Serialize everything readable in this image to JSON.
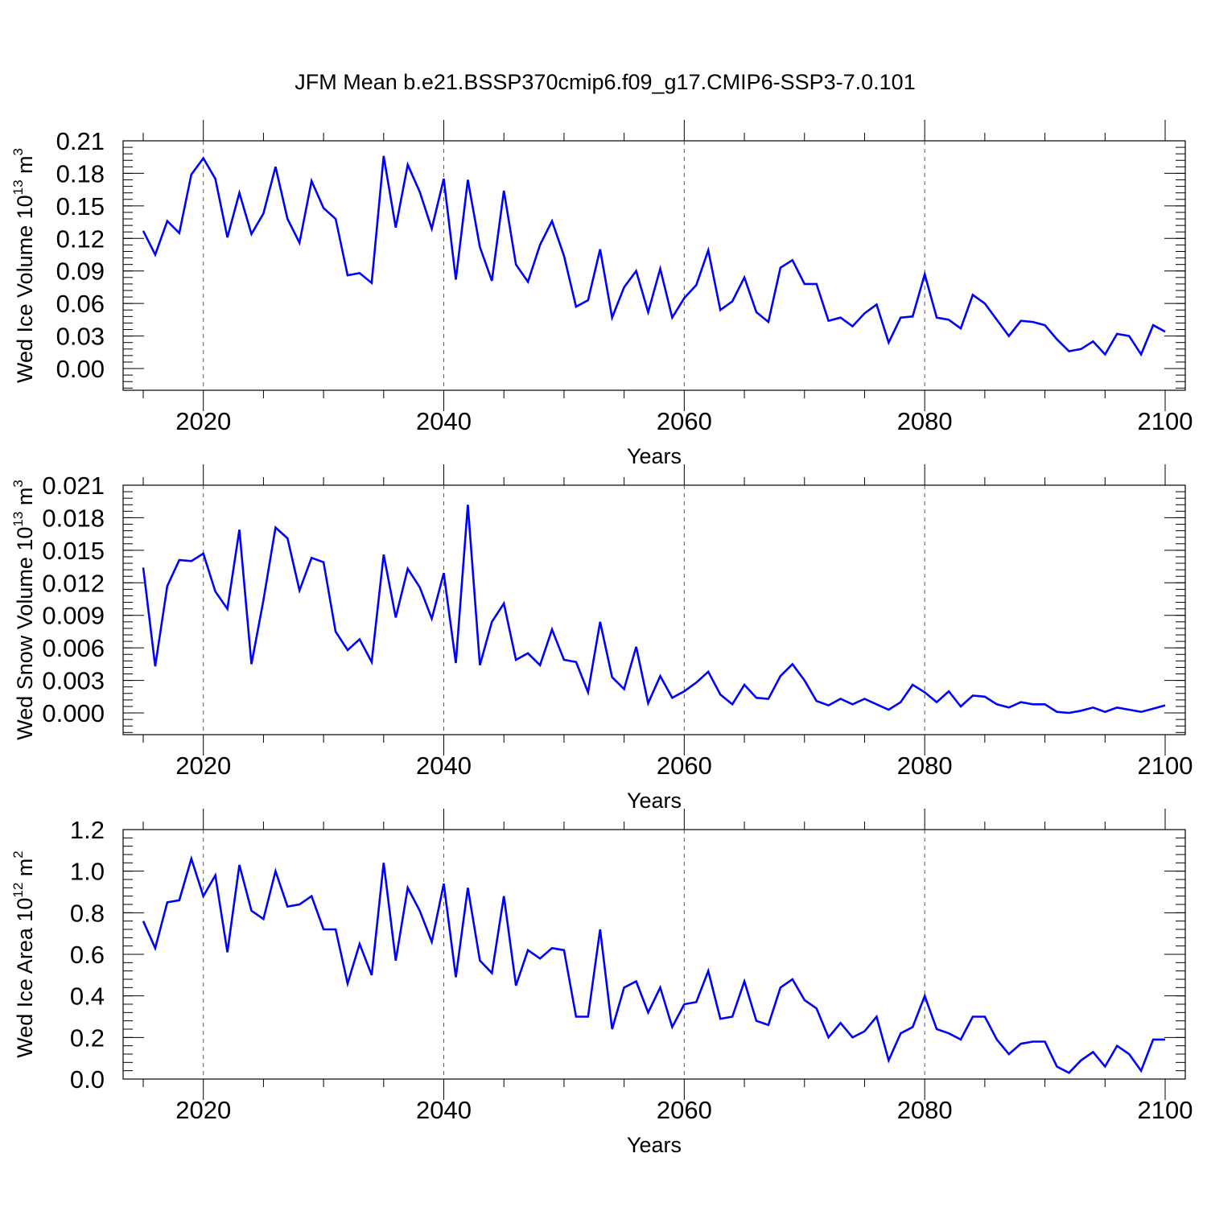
{
  "title": "JFM Mean b.e21.BSSP370cmip6.f09_g17.CMIP6-SSP3-7.0.101",
  "chart_data": [
    {
      "type": "line",
      "ylabel": {
        "main": "Wed Ice Volume 10",
        "exp": "13",
        "unit": " m",
        "unit_exp": "3"
      },
      "xlabel": "Years",
      "xlim": [
        2015,
        2100
      ],
      "ylim": [
        -0.02,
        0.21
      ],
      "x_ticks": [
        2020,
        2040,
        2060,
        2080,
        2100
      ],
      "y_ticks": [
        "0.00",
        "0.03",
        "0.06",
        "0.09",
        "0.12",
        "0.15",
        "0.18",
        "0.21"
      ],
      "series": [
        {
          "color": "#0000ff",
          "x": [
            2015,
            2016,
            2017,
            2018,
            2019,
            2020,
            2021,
            2022,
            2023,
            2024,
            2025,
            2026,
            2027,
            2028,
            2029,
            2030,
            2031,
            2032,
            2033,
            2034,
            2035,
            2036,
            2037,
            2038,
            2039,
            2040,
            2041,
            2042,
            2043,
            2044,
            2045,
            2046,
            2047,
            2048,
            2049,
            2050,
            2051,
            2052,
            2053,
            2054,
            2055,
            2056,
            2057,
            2058,
            2059,
            2060,
            2061,
            2062,
            2063,
            2064,
            2065,
            2066,
            2067,
            2068,
            2069,
            2070,
            2071,
            2072,
            2073,
            2074,
            2075,
            2076,
            2077,
            2078,
            2079,
            2080,
            2081,
            2082,
            2083,
            2084,
            2085,
            2086,
            2087,
            2088,
            2089,
            2090,
            2091,
            2092,
            2093,
            2094,
            2095,
            2096,
            2097,
            2098,
            2099,
            2100
          ],
          "values": [
            0.127,
            0.105,
            0.136,
            0.125,
            0.179,
            0.194,
            0.175,
            0.121,
            0.162,
            0.124,
            0.143,
            0.186,
            0.138,
            0.116,
            0.173,
            0.148,
            0.138,
            0.086,
            0.088,
            0.079,
            0.196,
            0.13,
            0.188,
            0.163,
            0.129,
            0.175,
            0.082,
            0.174,
            0.112,
            0.081,
            0.164,
            0.096,
            0.08,
            0.114,
            0.136,
            0.104,
            0.057,
            0.063,
            0.11,
            0.047,
            0.075,
            0.09,
            0.052,
            0.092,
            0.047,
            0.065,
            0.077,
            0.109,
            0.054,
            0.062,
            0.084,
            0.052,
            0.043,
            0.093,
            0.1,
            0.078,
            0.078,
            0.044,
            0.047,
            0.039,
            0.051,
            0.059,
            0.024,
            0.047,
            0.048,
            0.087,
            0.047,
            0.045,
            0.037,
            0.068,
            0.06,
            0.045,
            0.03,
            0.044,
            0.043,
            0.04,
            0.027,
            0.016,
            0.018,
            0.025,
            0.013,
            0.032,
            0.03,
            0.013,
            0.04,
            0.034
          ]
        }
      ]
    },
    {
      "type": "line",
      "ylabel": {
        "main": "Wed Snow Volume 10",
        "exp": "13",
        "unit": " m",
        "unit_exp": "3"
      },
      "xlabel": "Years",
      "xlim": [
        2015,
        2100
      ],
      "ylim": [
        -0.002,
        0.021
      ],
      "x_ticks": [
        2020,
        2040,
        2060,
        2080,
        2100
      ],
      "y_ticks": [
        "0.000",
        "0.003",
        "0.006",
        "0.009",
        "0.012",
        "0.015",
        "0.018",
        "0.021"
      ],
      "series": [
        {
          "color": "#0000ff",
          "x": [
            2015,
            2016,
            2017,
            2018,
            2019,
            2020,
            2021,
            2022,
            2023,
            2024,
            2025,
            2026,
            2027,
            2028,
            2029,
            2030,
            2031,
            2032,
            2033,
            2034,
            2035,
            2036,
            2037,
            2038,
            2039,
            2040,
            2041,
            2042,
            2043,
            2044,
            2045,
            2046,
            2047,
            2048,
            2049,
            2050,
            2051,
            2052,
            2053,
            2054,
            2055,
            2056,
            2057,
            2058,
            2059,
            2060,
            2061,
            2062,
            2063,
            2064,
            2065,
            2066,
            2067,
            2068,
            2069,
            2070,
            2071,
            2072,
            2073,
            2074,
            2075,
            2076,
            2077,
            2078,
            2079,
            2080,
            2081,
            2082,
            2083,
            2084,
            2085,
            2086,
            2087,
            2088,
            2089,
            2090,
            2091,
            2092,
            2093,
            2094,
            2095,
            2096,
            2097,
            2098,
            2099,
            2100
          ],
          "values": [
            0.0134,
            0.0043,
            0.0117,
            0.0141,
            0.014,
            0.0147,
            0.0112,
            0.0096,
            0.0169,
            0.0045,
            0.0104,
            0.0171,
            0.0161,
            0.0113,
            0.0143,
            0.0139,
            0.0075,
            0.0058,
            0.0068,
            0.0047,
            0.0146,
            0.0088,
            0.0133,
            0.0116,
            0.0087,
            0.0129,
            0.0046,
            0.0192,
            0.0044,
            0.0084,
            0.0101,
            0.0049,
            0.0055,
            0.0044,
            0.0077,
            0.0049,
            0.0047,
            0.0019,
            0.0084,
            0.0033,
            0.0022,
            0.0061,
            0.0009,
            0.0034,
            0.0014,
            0.002,
            0.0028,
            0.0038,
            0.0017,
            0.0008,
            0.0026,
            0.0014,
            0.0013,
            0.0034,
            0.0045,
            0.003,
            0.0011,
            0.0007,
            0.0013,
            0.0008,
            0.0013,
            0.0008,
            0.0003,
            0.001,
            0.0026,
            0.0019,
            0.001,
            0.002,
            0.0006,
            0.0016,
            0.0015,
            0.0008,
            0.0005,
            0.001,
            0.0008,
            0.0008,
            0.0001,
            0.0,
            0.0002,
            0.0005,
            0.0001,
            0.0005,
            0.0003,
            0.0001,
            0.0004,
            0.0007
          ]
        }
      ]
    },
    {
      "type": "line",
      "ylabel": {
        "main": "Wed Ice Area 10",
        "exp": "12",
        "unit": " m",
        "unit_exp": "2"
      },
      "xlabel": "Years",
      "xlim": [
        2015,
        2100
      ],
      "ylim": [
        0.0,
        1.2
      ],
      "x_ticks": [
        2020,
        2040,
        2060,
        2080,
        2100
      ],
      "y_ticks": [
        "0.0",
        "0.2",
        "0.4",
        "0.6",
        "0.8",
        "1.0",
        "1.2"
      ],
      "series": [
        {
          "color": "#0000ff",
          "x": [
            2015,
            2016,
            2017,
            2018,
            2019,
            2020,
            2021,
            2022,
            2023,
            2024,
            2025,
            2026,
            2027,
            2028,
            2029,
            2030,
            2031,
            2032,
            2033,
            2034,
            2035,
            2036,
            2037,
            2038,
            2039,
            2040,
            2041,
            2042,
            2043,
            2044,
            2045,
            2046,
            2047,
            2048,
            2049,
            2050,
            2051,
            2052,
            2053,
            2054,
            2055,
            2056,
            2057,
            2058,
            2059,
            2060,
            2061,
            2062,
            2063,
            2064,
            2065,
            2066,
            2067,
            2068,
            2069,
            2070,
            2071,
            2072,
            2073,
            2074,
            2075,
            2076,
            2077,
            2078,
            2079,
            2080,
            2081,
            2082,
            2083,
            2084,
            2085,
            2086,
            2087,
            2088,
            2089,
            2090,
            2091,
            2092,
            2093,
            2094,
            2095,
            2096,
            2097,
            2098,
            2099,
            2100
          ],
          "values": [
            0.76,
            0.63,
            0.85,
            0.86,
            1.06,
            0.88,
            0.98,
            0.61,
            1.03,
            0.81,
            0.77,
            1.0,
            0.83,
            0.84,
            0.88,
            0.72,
            0.72,
            0.46,
            0.65,
            0.5,
            1.04,
            0.57,
            0.92,
            0.81,
            0.66,
            0.94,
            0.49,
            0.92,
            0.57,
            0.51,
            0.88,
            0.45,
            0.62,
            0.58,
            0.63,
            0.62,
            0.3,
            0.3,
            0.72,
            0.24,
            0.44,
            0.47,
            0.32,
            0.44,
            0.25,
            0.36,
            0.37,
            0.52,
            0.29,
            0.3,
            0.47,
            0.28,
            0.26,
            0.44,
            0.48,
            0.38,
            0.34,
            0.2,
            0.27,
            0.2,
            0.23,
            0.3,
            0.09,
            0.22,
            0.25,
            0.4,
            0.24,
            0.22,
            0.19,
            0.3,
            0.3,
            0.19,
            0.12,
            0.17,
            0.18,
            0.18,
            0.06,
            0.03,
            0.09,
            0.13,
            0.06,
            0.16,
            0.12,
            0.04,
            0.19,
            0.19
          ]
        }
      ]
    }
  ]
}
